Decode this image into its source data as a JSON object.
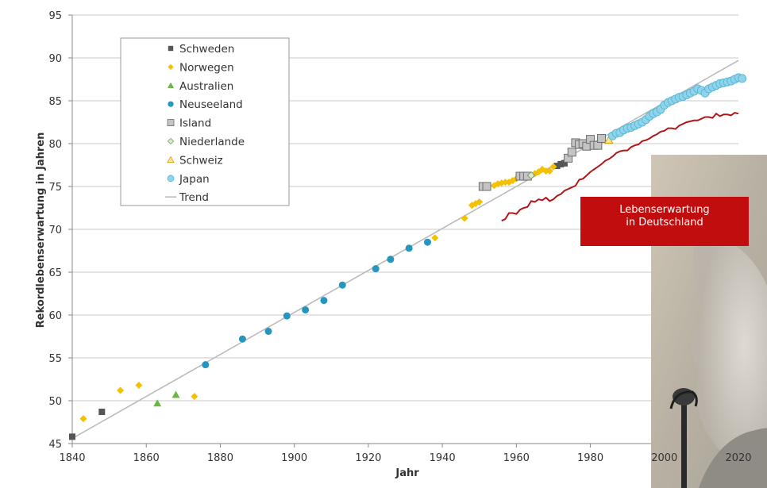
{
  "chart_data": {
    "type": "scatter",
    "xlabel": "Jahr",
    "ylabel": "Rekordlebenserwartung in Jahren",
    "xlim": [
      1840,
      2020
    ],
    "ylim": [
      45,
      95
    ],
    "x_ticks": [
      1840,
      1860,
      1880,
      1900,
      1920,
      1940,
      1960,
      1980,
      2000,
      2020
    ],
    "y_ticks": [
      45,
      50,
      55,
      60,
      65,
      70,
      75,
      80,
      85,
      90,
      95
    ],
    "grid": "horizontal",
    "legend_position": "top-left",
    "series": [
      {
        "name": "Schweden",
        "marker": "square",
        "color": "#555555",
        "points": [
          [
            1840,
            45.8
          ],
          [
            1848,
            48.7
          ],
          [
            1971,
            77.4
          ],
          [
            1972,
            77.6
          ],
          [
            1973,
            77.7
          ]
        ]
      },
      {
        "name": "Norwegen",
        "marker": "diamond",
        "color": "#f5c000",
        "points": [
          [
            1843,
            47.9
          ],
          [
            1853,
            51.2
          ],
          [
            1858,
            51.8
          ],
          [
            1873,
            50.5
          ],
          [
            1938,
            69.0
          ],
          [
            1946,
            71.3
          ],
          [
            1948,
            72.8
          ],
          [
            1949,
            73.0
          ],
          [
            1950,
            73.2
          ],
          [
            1954,
            75.1
          ],
          [
            1955,
            75.3
          ],
          [
            1956,
            75.4
          ],
          [
            1957,
            75.5
          ],
          [
            1958,
            75.5
          ],
          [
            1959,
            75.7
          ],
          [
            1960,
            75.9
          ],
          [
            1965,
            76.5
          ],
          [
            1966,
            76.7
          ],
          [
            1967,
            77.0
          ],
          [
            1968,
            76.8
          ],
          [
            1969,
            76.8
          ],
          [
            1970,
            77.3
          ]
        ]
      },
      {
        "name": "Australien",
        "marker": "triangle",
        "color": "#6ab746",
        "points": [
          [
            1863,
            49.7
          ],
          [
            1868,
            50.7
          ]
        ]
      },
      {
        "name": "Neuseeland",
        "marker": "circle",
        "color": "#2596be",
        "points": [
          [
            1876,
            54.2
          ],
          [
            1886,
            57.2
          ],
          [
            1893,
            58.1
          ],
          [
            1898,
            59.9
          ],
          [
            1903,
            60.6
          ],
          [
            1908,
            61.7
          ],
          [
            1913,
            63.5
          ],
          [
            1922,
            65.4
          ],
          [
            1926,
            66.5
          ],
          [
            1931,
            67.8
          ],
          [
            1936,
            68.5
          ]
        ]
      },
      {
        "name": "Island",
        "marker": "square-outline",
        "color": "#a8a8a8",
        "points": [
          [
            1951,
            75.0
          ],
          [
            1952,
            75.0
          ],
          [
            1961,
            76.2
          ],
          [
            1962,
            76.2
          ],
          [
            1963,
            76.2
          ],
          [
            1974,
            78.3
          ],
          [
            1975,
            79.0
          ],
          [
            1976,
            80.1
          ],
          [
            1977,
            79.9
          ],
          [
            1978,
            80.0
          ],
          [
            1979,
            79.7
          ],
          [
            1980,
            80.5
          ],
          [
            1981,
            79.8
          ],
          [
            1982,
            79.8
          ],
          [
            1983,
            80.6
          ]
        ]
      },
      {
        "name": "Niederlande",
        "marker": "diamond-outline",
        "color": "#9bc97a",
        "points": [
          [
            1964,
            76.3
          ]
        ]
      },
      {
        "name": "Schweiz",
        "marker": "triangle-outline",
        "color": "#f5b51e",
        "points": [
          [
            1985,
            80.4
          ]
        ]
      },
      {
        "name": "Japan",
        "marker": "circle-outline",
        "color": "#8fd4ea",
        "points": [
          [
            1986,
            80.9
          ],
          [
            1987,
            81.2
          ],
          [
            1988,
            81.3
          ],
          [
            1989,
            81.6
          ],
          [
            1990,
            81.8
          ],
          [
            1991,
            81.9
          ],
          [
            1992,
            82.1
          ],
          [
            1993,
            82.3
          ],
          [
            1994,
            82.5
          ],
          [
            1995,
            82.8
          ],
          [
            1996,
            83.2
          ],
          [
            1997,
            83.5
          ],
          [
            1998,
            83.7
          ],
          [
            1999,
            84.0
          ],
          [
            2000,
            84.5
          ],
          [
            2001,
            84.8
          ],
          [
            2002,
            85.0
          ],
          [
            2003,
            85.2
          ],
          [
            2004,
            85.4
          ],
          [
            2005,
            85.5
          ],
          [
            2006,
            85.7
          ],
          [
            2007,
            85.9
          ],
          [
            2008,
            86.1
          ],
          [
            2009,
            86.4
          ],
          [
            2010,
            86.2
          ],
          [
            2011,
            85.9
          ],
          [
            2012,
            86.4
          ],
          [
            2013,
            86.6
          ],
          [
            2014,
            86.8
          ],
          [
            2015,
            87.0
          ],
          [
            2016,
            87.1
          ],
          [
            2017,
            87.2
          ],
          [
            2018,
            87.3
          ],
          [
            2019,
            87.5
          ],
          [
            2020,
            87.7
          ],
          [
            2021,
            87.6
          ]
        ]
      },
      {
        "name": "Trend",
        "line": true,
        "color": "#bbbbbb",
        "points": [
          [
            1840,
            45.6
          ],
          [
            2020,
            89.7
          ]
        ]
      }
    ],
    "germany": {
      "color": "#b01818",
      "points": [
        [
          1956,
          71.0
        ],
        [
          1957,
          71.2
        ],
        [
          1958,
          71.9
        ],
        [
          1959,
          71.9
        ],
        [
          1960,
          71.8
        ],
        [
          1961,
          72.3
        ],
        [
          1962,
          72.5
        ],
        [
          1963,
          72.6
        ],
        [
          1964,
          73.3
        ],
        [
          1965,
          73.2
        ],
        [
          1966,
          73.5
        ],
        [
          1967,
          73.4
        ],
        [
          1968,
          73.7
        ],
        [
          1969,
          73.3
        ],
        [
          1970,
          73.5
        ],
        [
          1971,
          73.9
        ],
        [
          1972,
          74.1
        ],
        [
          1973,
          74.5
        ],
        [
          1974,
          74.7
        ],
        [
          1975,
          74.9
        ],
        [
          1976,
          75.1
        ],
        [
          1977,
          75.8
        ],
        [
          1978,
          75.9
        ],
        [
          1979,
          76.3
        ],
        [
          1980,
          76.7
        ],
        [
          1981,
          77.0
        ],
        [
          1982,
          77.3
        ],
        [
          1983,
          77.6
        ],
        [
          1984,
          78.0
        ],
        [
          1985,
          78.2
        ],
        [
          1986,
          78.5
        ],
        [
          1987,
          78.9
        ],
        [
          1988,
          79.1
        ],
        [
          1989,
          79.2
        ],
        [
          1990,
          79.2
        ],
        [
          1991,
          79.6
        ],
        [
          1992,
          79.8
        ],
        [
          1993,
          79.9
        ],
        [
          1994,
          80.3
        ],
        [
          1995,
          80.4
        ],
        [
          1996,
          80.6
        ],
        [
          1997,
          80.9
        ],
        [
          1998,
          81.1
        ],
        [
          1999,
          81.4
        ],
        [
          2000,
          81.5
        ],
        [
          2001,
          81.8
        ],
        [
          2002,
          81.8
        ],
        [
          2003,
          81.7
        ],
        [
          2004,
          82.1
        ],
        [
          2005,
          82.3
        ],
        [
          2006,
          82.5
        ],
        [
          2007,
          82.6
        ],
        [
          2008,
          82.7
        ],
        [
          2009,
          82.7
        ],
        [
          2010,
          82.9
        ],
        [
          2011,
          83.1
        ],
        [
          2012,
          83.1
        ],
        [
          2013,
          83.0
        ],
        [
          2014,
          83.5
        ],
        [
          2015,
          83.2
        ],
        [
          2016,
          83.4
        ],
        [
          2017,
          83.4
        ],
        [
          2018,
          83.3
        ],
        [
          2019,
          83.6
        ],
        [
          2020,
          83.5
        ]
      ]
    },
    "annotation": {
      "lines": [
        "Lebenserwartung",
        "in Deutschland"
      ],
      "color": "#c10d0d"
    }
  }
}
